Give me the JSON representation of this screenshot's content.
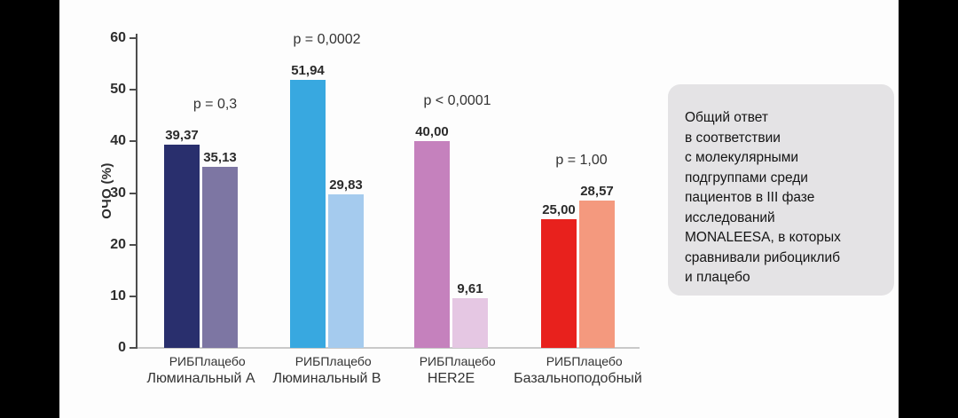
{
  "canvas": {
    "background": "#fdfdfd",
    "side_bar_color": "#000000"
  },
  "chart_data": {
    "type": "bar",
    "title": "",
    "xlabel": "",
    "ylabel": "ОЧО (%)",
    "ylim": [
      0,
      60
    ],
    "yticks": [
      "0",
      "10",
      "20",
      "30",
      "40",
      "50",
      "60"
    ],
    "grid": false,
    "legend_position": "none",
    "series_labels": [
      "РИБ",
      "Плацебо"
    ],
    "groups": [
      {
        "name": "Люминальный A",
        "p_label": "p = 0,3",
        "bars": [
          {
            "series": "РИБ",
            "value": 39.37,
            "display": "39,37",
            "color": "#292f6d"
          },
          {
            "series": "Плацебо",
            "value": 35.13,
            "display": "35,13",
            "color": "#7d76a3"
          }
        ]
      },
      {
        "name": "Люминальный B",
        "p_label": "p = 0,0002",
        "bars": [
          {
            "series": "РИБ",
            "value": 51.94,
            "display": "51,94",
            "color": "#38a8e0"
          },
          {
            "series": "Плацебо",
            "value": 29.83,
            "display": "29,83",
            "color": "#a5cbee"
          }
        ]
      },
      {
        "name": "HER2E",
        "p_label": "p < 0,0001",
        "bars": [
          {
            "series": "РИБ",
            "value": 40.0,
            "display": "40,00",
            "color": "#c581bd"
          },
          {
            "series": "Плацебо",
            "value": 9.61,
            "display": "9,61",
            "color": "#e5c7e3"
          }
        ]
      },
      {
        "name": "Базальноподобный",
        "p_label": "p = 1,00",
        "bars": [
          {
            "series": "РИБ",
            "value": 25.0,
            "display": "25,00",
            "color": "#e8211d"
          },
          {
            "series": "Плацебо",
            "value": 28.57,
            "display": "28,57",
            "color": "#f4997e"
          }
        ]
      }
    ]
  },
  "note_box": {
    "background": "#e4e3e5",
    "text": "Общий ответ\nв соответствии\nс молекулярными\nподгруппами среди\nпациентов в III фазе\nисследований\nMONALEESA, в которых\nсравнивали рибоциклиб\nи плацебо"
  }
}
